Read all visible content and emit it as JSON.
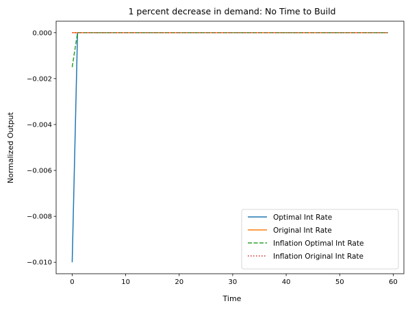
{
  "chart_data": {
    "type": "line",
    "title": "1 percent decrease in demand: No Time to Build",
    "xlabel": "Time",
    "ylabel": "Normalized Output",
    "xlim": [
      -3,
      62
    ],
    "ylim": [
      -0.0105,
      0.0005
    ],
    "xticks": [
      0,
      10,
      20,
      30,
      40,
      50,
      60
    ],
    "xtick_labels": [
      "0",
      "10",
      "20",
      "30",
      "40",
      "50",
      "60"
    ],
    "yticks": [
      0.0,
      -0.002,
      -0.004,
      -0.006,
      -0.008,
      -0.01
    ],
    "ytick_labels": [
      "0.000",
      "−0.002",
      "−0.004",
      "−0.006",
      "−0.008",
      "−0.010"
    ],
    "grid": false,
    "legend_position": "lower-right",
    "series": [
      {
        "name": "Optimal Int Rate",
        "color": "#1f77b4",
        "style": "solid",
        "x": [
          0,
          1,
          59
        ],
        "y": [
          -0.01,
          0.0,
          0.0
        ]
      },
      {
        "name": "Original Int Rate",
        "color": "#ff7f0e",
        "style": "solid",
        "x": [
          0,
          59
        ],
        "y": [
          0.0,
          0.0
        ]
      },
      {
        "name": "Inflation Optimal Int Rate",
        "color": "#2ca02c",
        "style": "dashed",
        "x": [
          0,
          1,
          59
        ],
        "y": [
          -0.0015,
          0.0,
          0.0
        ]
      },
      {
        "name": "Inflation Original Int Rate",
        "color": "#d62728",
        "style": "dotted",
        "x": [
          0,
          59
        ],
        "y": [
          0.0,
          0.0
        ]
      }
    ]
  }
}
